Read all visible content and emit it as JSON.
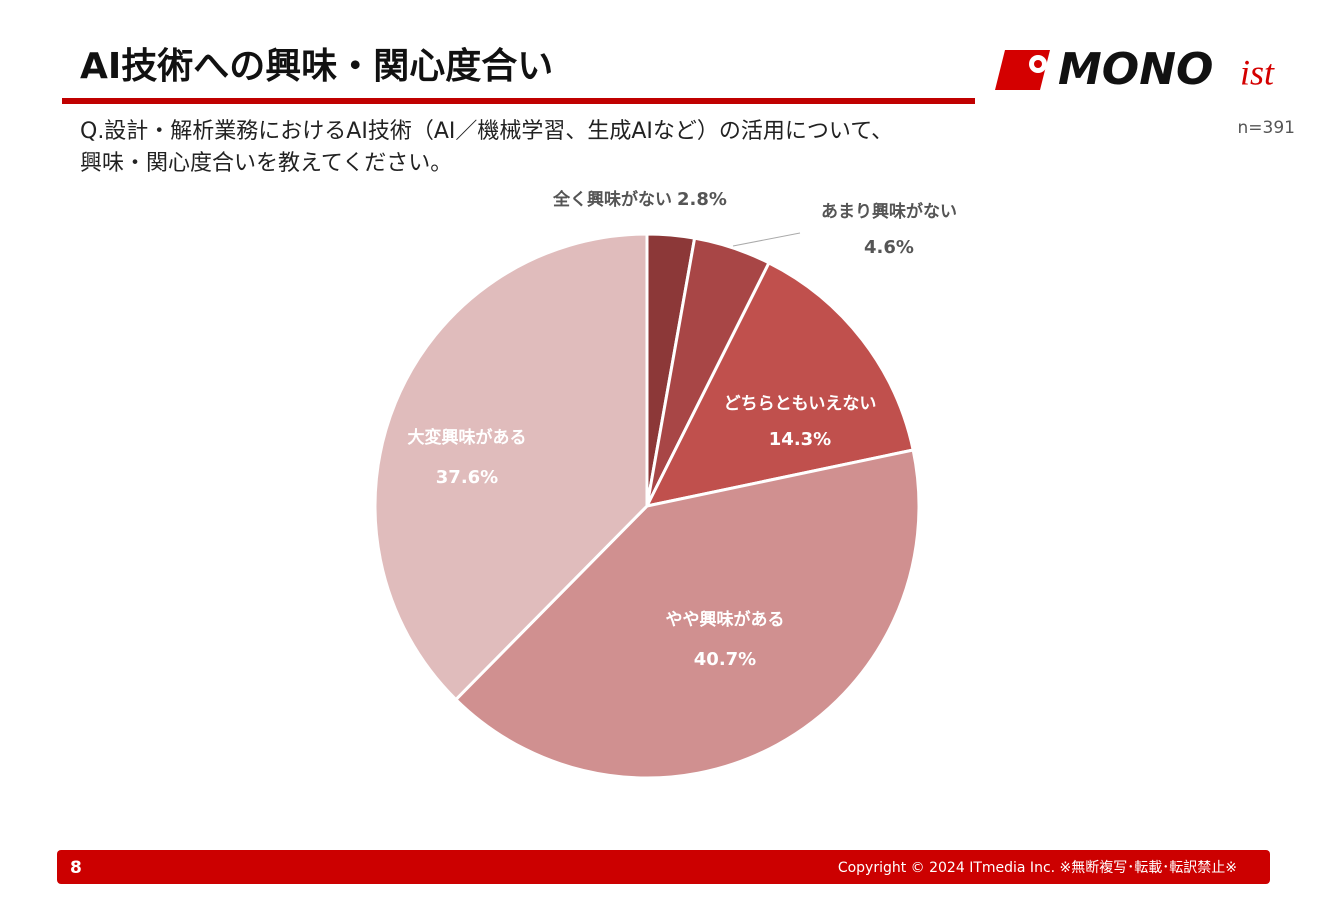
{
  "header": {
    "title": "AI技術への興味・関心度合い",
    "logo_main": "MONO",
    "logo_sub": "ist"
  },
  "chart_data": {
    "type": "pie",
    "subtitle": [
      "Q.設計・解析業務におけるAI技術（AI／機械学習、生成AIなど）の活用について、",
      "興味・関心度合いを教えてください。"
    ],
    "note": "n=391",
    "categories": [
      "全く興味がない",
      "あまり興味がない",
      "どちらともいえない",
      "やや興味がある",
      "大変興味がある"
    ],
    "values": [
      2.8,
      4.6,
      14.3,
      40.7,
      37.6
    ],
    "value_labels": [
      "2.8%",
      "4.6%",
      "14.3%",
      "40.7%",
      "37.6%"
    ],
    "colors": [
      "#8c3838",
      "#a84646",
      "#c0504d",
      "#d09090",
      "#e0bcbc"
    ]
  },
  "footer": {
    "page": "8",
    "copyright": "Copyright © 2024 ITmedia Inc.  ※無断複写･転載･転訳禁止※"
  }
}
